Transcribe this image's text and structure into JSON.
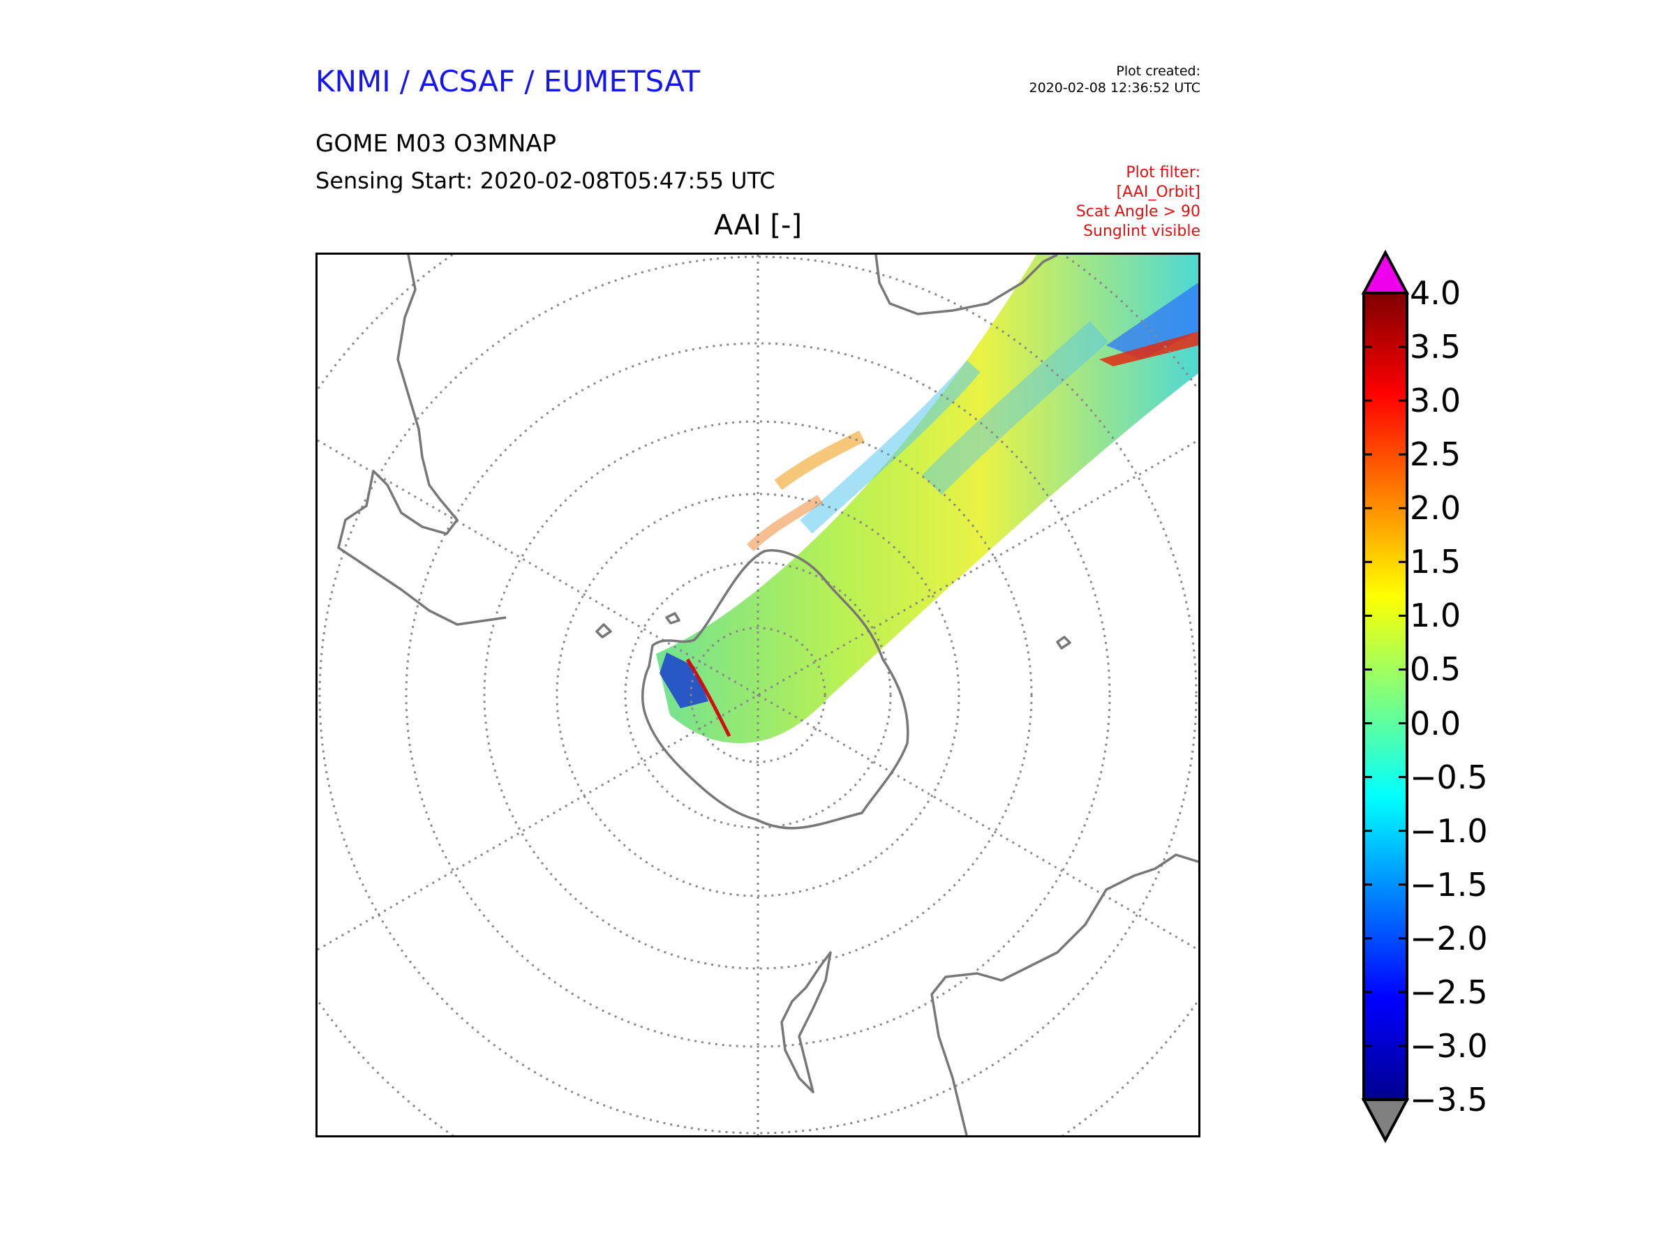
{
  "header": {
    "organization": "KNMI / ACSAF / EUMETSAT",
    "plot_created_label": "Plot created:",
    "plot_created_value": "2020-02-08 12:36:52 UTC",
    "product": "GOME M03 O3MNAP",
    "sensing_start": "Sensing Start: 2020-02-08T05:47:55 UTC",
    "filter_lines": [
      "Plot filter:",
      "[AAI_Orbit]",
      "Scat Angle > 90",
      "Sunglint visible"
    ]
  },
  "map": {
    "title": "AAI [-]",
    "projection": "south-polar-stereographic",
    "graticule_style": "dotted",
    "coastline_color": "#777777",
    "features": [
      "Antarctica",
      "South America",
      "Africa",
      "Australia",
      "New Zealand",
      "satellite swath"
    ]
  },
  "colorbar": {
    "colormap": "jet",
    "min": -3.5,
    "max": 4.0,
    "ticks": [
      "4.0",
      "3.5",
      "3.0",
      "2.5",
      "2.0",
      "1.5",
      "1.0",
      "0.5",
      "0.0",
      "−0.5",
      "−1.0",
      "−1.5",
      "−2.0",
      "−2.5",
      "−3.0",
      "−3.5"
    ],
    "tick_values": [
      4.0,
      3.5,
      3.0,
      2.5,
      2.0,
      1.5,
      1.0,
      0.5,
      0.0,
      -0.5,
      -1.0,
      -1.5,
      -2.0,
      -2.5,
      -3.0,
      -3.5
    ],
    "over_color": "#ee00ee",
    "under_color": "#808080"
  }
}
